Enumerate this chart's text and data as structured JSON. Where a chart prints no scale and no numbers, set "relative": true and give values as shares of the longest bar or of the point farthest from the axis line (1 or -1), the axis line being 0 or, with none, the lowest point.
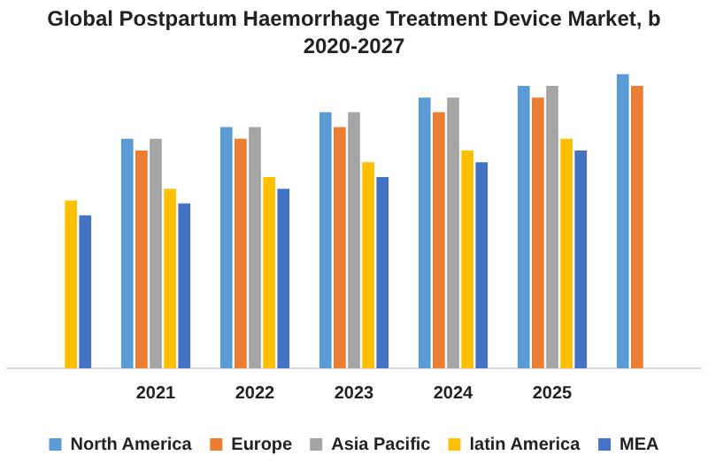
{
  "chart_data": {
    "type": "bar",
    "title": "Global Postpartum Haemorrhage Treatment Device Market, b",
    "subtitle": "2020-2027",
    "relative": true,
    "categories": [
      null,
      "2021",
      "2022",
      "2023",
      "2024",
      "2025",
      null
    ],
    "legend": "bottom",
    "grid": false,
    "series": [
      {
        "name": "North America",
        "color": "#5b9bd5",
        "values": [
          null,
          0.78,
          0.82,
          0.87,
          0.92,
          0.96,
          1
        ]
      },
      {
        "name": "Europe",
        "color": "#ed7d31",
        "values": [
          null,
          0.74,
          0.78,
          0.82,
          0.87,
          0.92,
          0.96
        ]
      },
      {
        "name": "Asia Pacific",
        "color": "#a5a5a5",
        "values": [
          null,
          0.78,
          0.82,
          0.87,
          0.92,
          0.96,
          null
        ]
      },
      {
        "name": "latin America",
        "color": "#ffc000",
        "values": [
          0.57,
          0.61,
          0.65,
          0.7,
          0.74,
          0.78,
          null
        ]
      },
      {
        "name": "MEA",
        "color": "#4472c4",
        "values": [
          0.52,
          0.56,
          0.61,
          0.65,
          0.7,
          0.74,
          null
        ]
      }
    ]
  }
}
